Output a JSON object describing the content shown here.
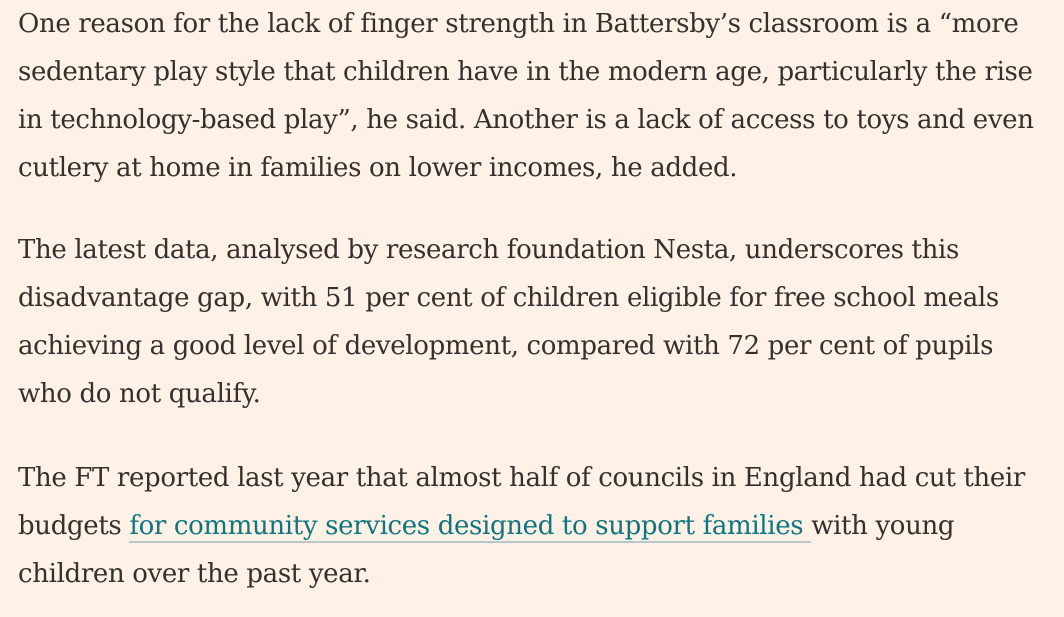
{
  "article": {
    "paragraphs": [
      {
        "lines": [
          "One reason for the lack of finger strength in Battersby’s classroom is a “more",
          "sedentary play style that children have in the modern age, particularly the rise",
          "in technology-based play”, he said. Another is a lack of access to toys and even",
          "cutlery at home in families on lower incomes, he added."
        ]
      },
      {
        "lines": [
          "The latest data, analysed by research foundation Nesta, underscores this",
          "disadvantage gap, with 51 per cent of children eligible for free school meals",
          "achieving a good level of development, compared with 72 per cent of pupils",
          "who do not qualify."
        ]
      },
      {
        "line1": "The FT reported last year that almost half of councils in England had cut their",
        "line2_before": "budgets ",
        "link_text": "for community services designed to support families ",
        "line2_after": "with young",
        "line3": "children over the past year."
      }
    ]
  },
  "colors": {
    "background": "#FFF1E5",
    "text": "#33302E",
    "link": "#0D7680",
    "link_underline": "#B7C7CB"
  }
}
